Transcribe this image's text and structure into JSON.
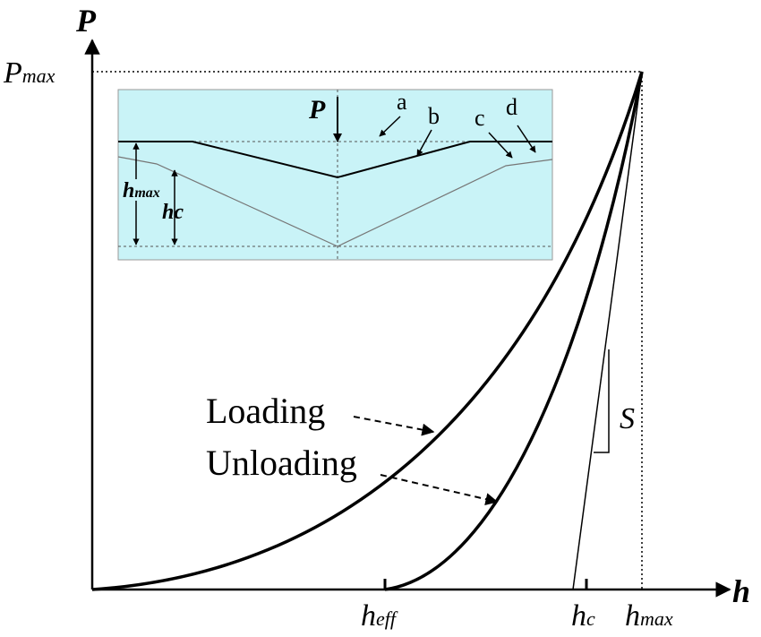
{
  "axes": {
    "y_label": "P",
    "x_label": "h",
    "pmax": {
      "base": "P",
      "sub": "max"
    },
    "x_ticks": [
      {
        "base": "h",
        "sub": "eff"
      },
      {
        "base": "h",
        "sub": "c"
      },
      {
        "base": "h",
        "sub": "max"
      }
    ]
  },
  "curves": {
    "loading": "Loading",
    "unloading": "Unloading",
    "stiffness": "S"
  },
  "inset": {
    "load": "P",
    "markers": [
      "a",
      "b",
      "c",
      "d"
    ],
    "hmax": {
      "base": "h",
      "sub": "max"
    },
    "hc": {
      "base": "h",
      "sub": "c"
    }
  }
}
